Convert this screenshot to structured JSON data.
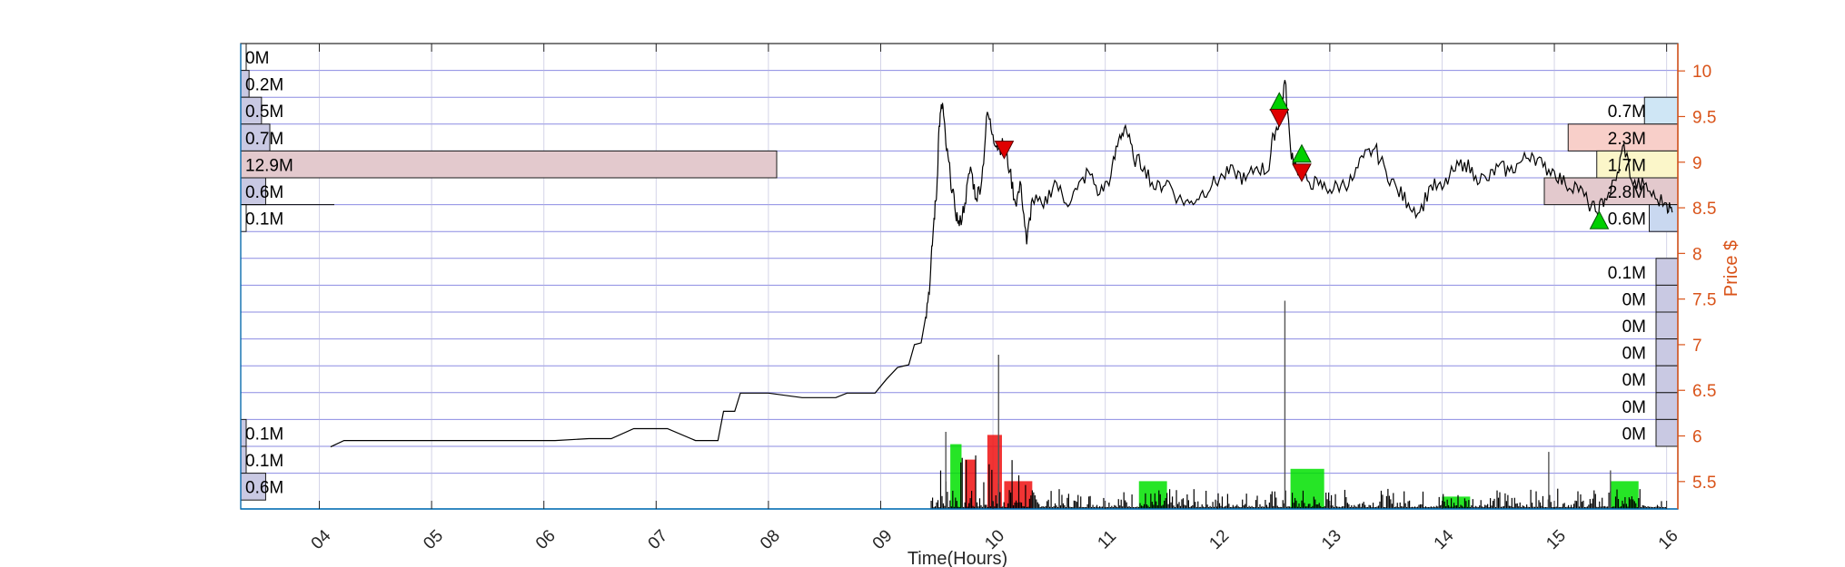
{
  "chart_data": {
    "type": "line",
    "xlabel": "Time(Hours)",
    "ylabel": "Price $",
    "x_tick_labels": [
      "04",
      "05",
      "06",
      "07",
      "08",
      "09",
      "10",
      "11",
      "12",
      "13",
      "14",
      "15",
      "16"
    ],
    "y_ticks": [
      5.5,
      6,
      6.5,
      7,
      7.5,
      8,
      8.5,
      9,
      9.5,
      10
    ],
    "y_tick_labels": [
      "5.5",
      "6",
      "6.5",
      "7",
      "7.5",
      "8",
      "8.5",
      "9",
      "9.5",
      "10"
    ],
    "xlim": [
      3.3,
      16.1
    ],
    "ylim": [
      5.2,
      10.3
    ],
    "grid": true,
    "price_series": [
      [
        4.1,
        5.88
      ],
      [
        4.22,
        5.95
      ],
      [
        4.5,
        5.95
      ],
      [
        5.0,
        5.95
      ],
      [
        5.6,
        5.95
      ],
      [
        6.1,
        5.95
      ],
      [
        6.4,
        5.97
      ],
      [
        6.6,
        5.97
      ],
      [
        6.8,
        6.08
      ],
      [
        7.1,
        6.08
      ],
      [
        7.35,
        5.95
      ],
      [
        7.55,
        5.95
      ],
      [
        7.6,
        6.27
      ],
      [
        7.7,
        6.27
      ],
      [
        7.75,
        6.47
      ],
      [
        8.0,
        6.47
      ],
      [
        8.3,
        6.42
      ],
      [
        8.6,
        6.42
      ],
      [
        8.7,
        6.47
      ],
      [
        8.95,
        6.47
      ],
      [
        9.05,
        6.62
      ],
      [
        9.15,
        6.75
      ],
      [
        9.25,
        6.78
      ],
      [
        9.3,
        7.0
      ],
      [
        9.36,
        7.02
      ],
      [
        9.4,
        7.3
      ],
      [
        9.44,
        7.7
      ],
      [
        9.47,
        8.3
      ],
      [
        9.5,
        8.7
      ],
      [
        9.52,
        9.4
      ],
      [
        9.55,
        9.65
      ],
      [
        9.58,
        9.2
      ],
      [
        9.62,
        8.85
      ],
      [
        9.66,
        8.5
      ],
      [
        9.7,
        8.3
      ],
      [
        9.75,
        8.55
      ],
      [
        9.8,
        8.95
      ],
      [
        9.85,
        8.6
      ],
      [
        9.9,
        8.8
      ],
      [
        9.95,
        9.55
      ],
      [
        10.0,
        9.3
      ],
      [
        10.05,
        9.15
      ],
      [
        10.1,
        9.2
      ],
      [
        10.15,
        8.9
      ],
      [
        10.2,
        8.55
      ],
      [
        10.25,
        8.75
      ],
      [
        10.3,
        8.1
      ],
      [
        10.35,
        8.6
      ],
      [
        10.45,
        8.5
      ],
      [
        10.55,
        8.8
      ],
      [
        10.65,
        8.55
      ],
      [
        10.75,
        8.7
      ],
      [
        10.85,
        8.9
      ],
      [
        10.95,
        8.65
      ],
      [
        11.05,
        8.85
      ],
      [
        11.12,
        9.25
      ],
      [
        11.18,
        9.4
      ],
      [
        11.25,
        9.05
      ],
      [
        11.35,
        8.95
      ],
      [
        11.45,
        8.7
      ],
      [
        11.55,
        8.8
      ],
      [
        11.65,
        8.6
      ],
      [
        11.75,
        8.55
      ],
      [
        11.85,
        8.65
      ],
      [
        11.95,
        8.75
      ],
      [
        12.05,
        8.85
      ],
      [
        12.15,
        8.9
      ],
      [
        12.25,
        8.8
      ],
      [
        12.35,
        8.95
      ],
      [
        12.45,
        8.9
      ],
      [
        12.5,
        9.3
      ],
      [
        12.55,
        9.45
      ],
      [
        12.6,
        9.9
      ],
      [
        12.65,
        9.15
      ],
      [
        12.7,
        8.95
      ],
      [
        12.8,
        8.8
      ],
      [
        12.9,
        8.75
      ],
      [
        13.0,
        8.7
      ],
      [
        13.1,
        8.75
      ],
      [
        13.2,
        8.8
      ],
      [
        13.3,
        9.05
      ],
      [
        13.4,
        9.15
      ],
      [
        13.5,
        8.9
      ],
      [
        13.6,
        8.7
      ],
      [
        13.7,
        8.55
      ],
      [
        13.8,
        8.45
      ],
      [
        13.9,
        8.75
      ],
      [
        14.0,
        8.7
      ],
      [
        14.1,
        8.9
      ],
      [
        14.2,
        9.0
      ],
      [
        14.3,
        8.85
      ],
      [
        14.4,
        8.8
      ],
      [
        14.5,
        8.95
      ],
      [
        14.6,
        8.9
      ],
      [
        14.7,
        9.0
      ],
      [
        14.8,
        9.1
      ],
      [
        14.9,
        8.95
      ],
      [
        15.0,
        8.9
      ],
      [
        15.1,
        8.75
      ],
      [
        15.2,
        8.75
      ],
      [
        15.3,
        8.55
      ],
      [
        15.38,
        8.45
      ],
      [
        15.45,
        8.6
      ],
      [
        15.55,
        8.8
      ],
      [
        15.62,
        9.2
      ],
      [
        15.7,
        8.75
      ],
      [
        15.8,
        8.75
      ],
      [
        15.9,
        8.6
      ],
      [
        16.0,
        8.55
      ],
      [
        16.05,
        8.45
      ]
    ],
    "buy_markers": [
      [
        12.55,
        9.65
      ],
      [
        12.75,
        9.08
      ],
      [
        15.4,
        8.35
      ]
    ],
    "sell_markers": [
      [
        10.1,
        9.15
      ],
      [
        12.55,
        9.5
      ],
      [
        12.75,
        8.9
      ]
    ],
    "volume_spikes": [
      [
        9.58,
        0.5
      ],
      [
        10.05,
        1.0
      ],
      [
        12.6,
        1.35
      ],
      [
        14.95,
        0.37
      ],
      [
        15.5,
        0.25
      ]
    ],
    "volume_blocks": [
      {
        "x0": 9.62,
        "x1": 9.72,
        "h": 0.42,
        "color": "green"
      },
      {
        "x0": 9.75,
        "x1": 9.85,
        "h": 0.32,
        "color": "red"
      },
      {
        "x0": 9.95,
        "x1": 10.08,
        "h": 0.48,
        "color": "red"
      },
      {
        "x0": 10.1,
        "x1": 10.35,
        "h": 0.18,
        "color": "red"
      },
      {
        "x0": 11.3,
        "x1": 11.55,
        "h": 0.18,
        "color": "green"
      },
      {
        "x0": 12.65,
        "x1": 12.95,
        "h": 0.26,
        "color": "green"
      },
      {
        "x0": 14.0,
        "x1": 14.25,
        "h": 0.08,
        "color": "green"
      },
      {
        "x0": 15.5,
        "x1": 15.75,
        "h": 0.18,
        "color": "green"
      }
    ],
    "volume_profile_left": [
      {
        "label": "0M",
        "value": 0.0,
        "color": "#fdfdfd"
      },
      {
        "label": "0.2M",
        "value": 0.2,
        "color": "#c9c9e3"
      },
      {
        "label": "0.5M",
        "value": 0.5,
        "color": "#c9c9e3"
      },
      {
        "label": "0.7M",
        "value": 0.7,
        "color": "#c9c9e3"
      },
      {
        "label": "12.9M",
        "value": 12.9,
        "color": "#e3c9cd"
      },
      {
        "label": "0.6M",
        "value": 0.6,
        "color": "#c9c9e3"
      },
      {
        "label": "0.1M",
        "value": 0.1,
        "color": "#ffffff"
      },
      {
        "label": "0.1M",
        "value": 0.1,
        "color": "#c9c9e3",
        "slot": 14
      },
      {
        "label": "0.1M",
        "value": 0.1,
        "color": "#c9c9e3",
        "slot": 15
      },
      {
        "label": "0.6M",
        "value": 0.6,
        "color": "#c9c9e3",
        "slot": 16
      }
    ],
    "volume_profile_right": [
      {
        "label": "0.7M",
        "value": 0.7,
        "color": "#cfe6f5",
        "slot": 2
      },
      {
        "label": "2.3M",
        "value": 2.3,
        "color": "#f8cfc9",
        "slot": 3
      },
      {
        "label": "1.7M",
        "value": 1.7,
        "color": "#fbf6c9",
        "slot": 4
      },
      {
        "label": "2.8M",
        "value": 2.8,
        "color": "#e3c9cd",
        "slot": 5
      },
      {
        "label": "0.6M",
        "value": 0.6,
        "color": "#c9d8f0",
        "slot": 6
      },
      {
        "label": "0.1M",
        "value": 0.1,
        "color": "#c9c9e3",
        "slot": 8
      },
      {
        "label": "0M",
        "value": 0.0,
        "color": "#c9c9e3",
        "slot": 9
      },
      {
        "label": "0M",
        "value": 0.0,
        "color": "#c9c9e3",
        "slot": 10
      },
      {
        "label": "0M",
        "value": 0.0,
        "color": "#c9c9e3",
        "slot": 11
      },
      {
        "label": "0M",
        "value": 0.0,
        "color": "#c9c9e3",
        "slot": 12
      },
      {
        "label": "0M",
        "value": 0.0,
        "color": "#c9c9e3",
        "slot": 13
      },
      {
        "label": "0M",
        "value": 0.0,
        "color": "#c9c9e3",
        "slot": 14
      }
    ],
    "colors": {
      "price_line": "#000000",
      "grid": "#5a5ad6",
      "right_axis": "#d95319",
      "buy": "#00d000",
      "sell": "#e00000",
      "volume_green": "#00e000",
      "volume_red": "#ee1111",
      "axes_box": "#262626"
    }
  }
}
